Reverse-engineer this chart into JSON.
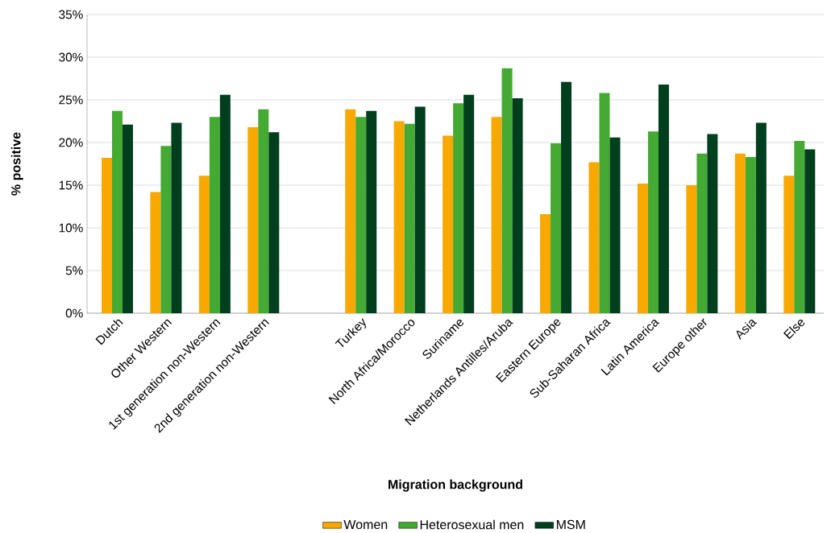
{
  "chart_data": {
    "type": "bar",
    "xlabel": "Migration background",
    "ylabel": "% positive",
    "categories": [
      "Dutch",
      "Other Western",
      "1st generation non-Western",
      "2nd generation non-Western",
      null,
      "Turkey",
      "North Africa/Morocco",
      "Suriname",
      "Netherlands Antilles/Aruba",
      "Eastern Europe",
      "Sub-Saharan Africa",
      "Latin America",
      "Europe other",
      "Asia",
      "Else"
    ],
    "series": [
      {
        "name": "Women",
        "color": "#f9a800",
        "values": [
          18.2,
          14.2,
          16.1,
          21.8,
          null,
          23.9,
          22.5,
          20.8,
          23.0,
          11.6,
          17.7,
          15.2,
          15.0,
          18.7,
          16.1
        ]
      },
      {
        "name": "Heterosexual men",
        "color": "#44aa33",
        "values": [
          23.7,
          19.6,
          23.0,
          23.9,
          null,
          23.0,
          22.2,
          24.6,
          28.7,
          19.9,
          25.8,
          21.3,
          18.7,
          18.3,
          20.2
        ]
      },
      {
        "name": "MSM",
        "color": "#003f1e",
        "values": [
          22.1,
          22.3,
          25.6,
          21.2,
          null,
          23.7,
          24.2,
          25.6,
          25.2,
          27.1,
          20.6,
          26.8,
          21.0,
          22.3,
          19.2
        ]
      }
    ],
    "ylim": [
      0,
      35
    ],
    "yticks": [
      {
        "value": 0,
        "label": "0%"
      },
      {
        "value": 5,
        "label": "5%"
      },
      {
        "value": 10,
        "label": "10%"
      },
      {
        "value": 15,
        "label": "15%"
      },
      {
        "value": 20,
        "label": "20%"
      },
      {
        "value": 25,
        "label": "25%"
      },
      {
        "value": 30,
        "label": "30%"
      },
      {
        "value": 35,
        "label": "35%"
      }
    ],
    "grid": "y",
    "legend": "bottom"
  }
}
